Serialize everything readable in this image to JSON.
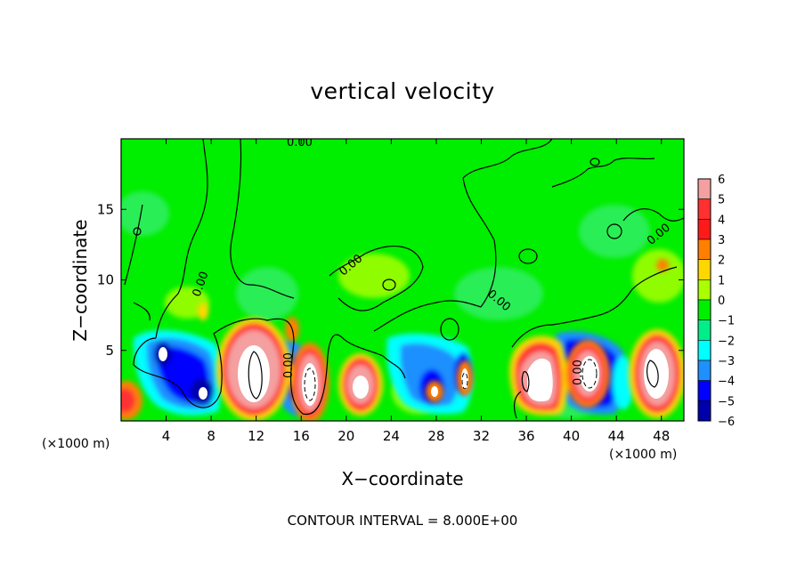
{
  "chart_data": {
    "type": "heatmap",
    "title": "vertical velocity",
    "xlabel": "X−coordinate",
    "ylabel": "Z−coordinate",
    "x_unit_label": "(×1000 m)",
    "contour_interval_label": "CONTOUR INTERVAL = 8.000E+00",
    "contour_value_label": "0.00",
    "xlim": [
      0,
      50
    ],
    "ylim": [
      0,
      20
    ],
    "x_ticks": [
      4,
      8,
      12,
      16,
      20,
      24,
      28,
      32,
      36,
      40,
      44,
      48
    ],
    "y_ticks": [
      5,
      10,
      15
    ],
    "colorbar": {
      "levels": [
        6,
        5,
        4,
        3,
        2,
        1,
        0,
        -1,
        -2,
        -3,
        -4,
        -5,
        -6
      ],
      "labels": [
        "6",
        "5",
        "4",
        "3",
        "2",
        "1",
        "0",
        "−1",
        "−2",
        "−3",
        "−4",
        "−5",
        "−6"
      ],
      "colors": [
        "#f4a0a0",
        "#ff3030",
        "#ff1a1a",
        "#ff8000",
        "#ffd700",
        "#aaff00",
        "#00ee00",
        "#00ee88",
        "#00ffff",
        "#1e90ff",
        "#0000ff",
        "#0000aa",
        "#8800cc"
      ]
    },
    "background_color": "#00ee00",
    "cells": [
      {
        "x": 1,
        "z": 1.5,
        "w": 1.5
      },
      {
        "x": 3.5,
        "z": 5,
        "w": -4.5
      },
      {
        "x": 6.5,
        "z": 2,
        "w": -6
      },
      {
        "x": 7,
        "z": 4.5,
        "w": -3
      },
      {
        "x": 11.5,
        "z": 3.5,
        "w": 6
      },
      {
        "x": 15,
        "z": 3,
        "w": -4
      },
      {
        "x": 17,
        "z": 3,
        "w": 6
      },
      {
        "x": 21,
        "z": 2.5,
        "w": 6
      },
      {
        "x": 26,
        "z": 4,
        "w": -3
      },
      {
        "x": 28,
        "z": 2,
        "w": -6
      },
      {
        "x": 30,
        "z": 3,
        "w": 6
      },
      {
        "x": 37,
        "z": 3,
        "w": 6
      },
      {
        "x": 41.5,
        "z": 3.5,
        "w": 6
      },
      {
        "x": 39.5,
        "z": 4,
        "w": -4
      },
      {
        "x": 47,
        "z": 4,
        "w": 6
      },
      {
        "x": 47,
        "z": 11,
        "w": 2
      }
    ]
  }
}
